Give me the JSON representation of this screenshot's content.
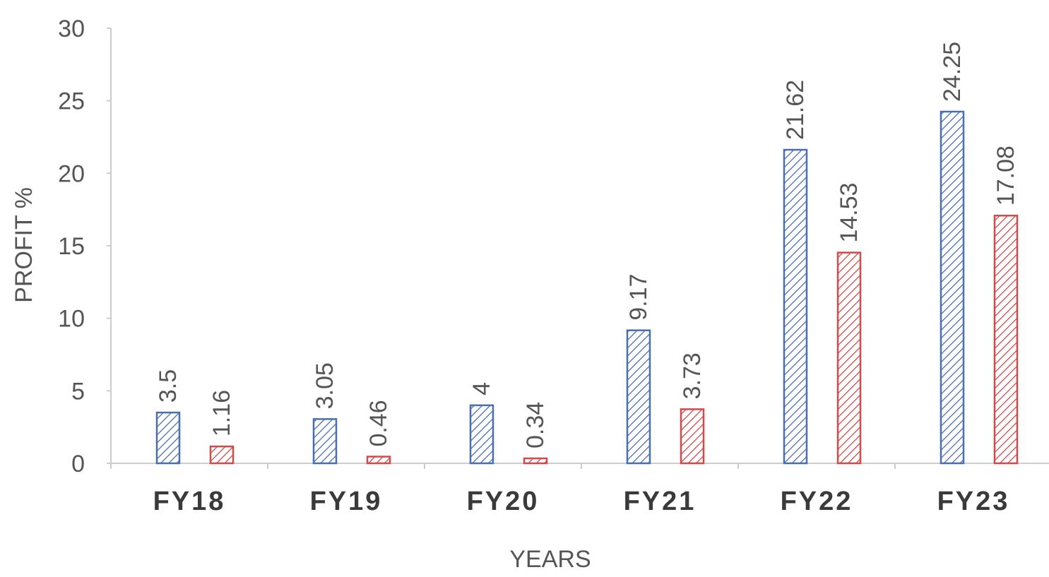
{
  "chart_data": {
    "type": "bar",
    "title": "",
    "xlabel": "YEARS",
    "ylabel": "PROFIT %",
    "categories": [
      "FY18",
      "FY19",
      "FY20",
      "FY21",
      "FY22",
      "FY23"
    ],
    "series": [
      {
        "values": [
          3.5,
          3.05,
          4,
          9.17,
          21.62,
          24.25
        ],
        "color": "#4a6fb0",
        "pattern": "diagonal-hatch"
      },
      {
        "values": [
          1.16,
          0.46,
          0.34,
          3.73,
          14.53,
          17.08
        ],
        "color": "#d24a4a",
        "pattern": "diagonal-hatch"
      }
    ],
    "data_labels": [
      [
        "3.5",
        "3.05",
        "4",
        "9.17",
        "21.62",
        "24.25"
      ],
      [
        "1.16",
        "0.46",
        "0.34",
        "3.73",
        "14.53",
        "17.08"
      ]
    ],
    "ylim": [
      0,
      30
    ],
    "yticks": [
      "0",
      "5",
      "10",
      "15",
      "20",
      "25",
      "30"
    ],
    "grid": false,
    "legend": "none"
  }
}
